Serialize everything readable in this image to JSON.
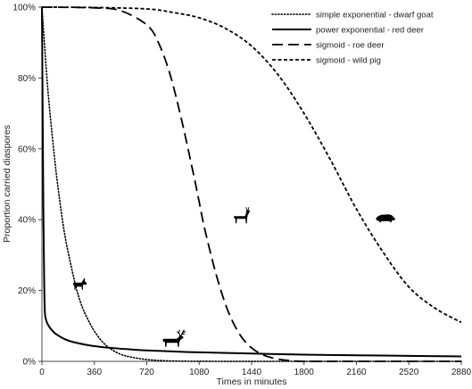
{
  "chart_data": {
    "type": "line",
    "title": "",
    "xlabel": "Times in minutes",
    "ylabel": "Proportion carried diaspores",
    "xlim": [
      0,
      2880
    ],
    "ylim": [
      0,
      100
    ],
    "x_ticks": [
      0,
      360,
      720,
      1080,
      1440,
      1800,
      2160,
      2520,
      2880
    ],
    "y_ticks": [
      0,
      20,
      40,
      60,
      80,
      100
    ],
    "y_tick_labels": [
      "0%",
      "20%",
      "40%",
      "60%",
      "80%",
      "100%"
    ],
    "grid": false,
    "legend_position": "top-right",
    "series": [
      {
        "name": "simple exponential - dwarf goat",
        "style": "dotted",
        "color": "#000000",
        "x": [
          0,
          20,
          40,
          60,
          80,
          100,
          130,
          160,
          200,
          240,
          280,
          320,
          360,
          420,
          480,
          540,
          600,
          720,
          900,
          1200,
          1800,
          2880
        ],
        "y": [
          100,
          88,
          77,
          68,
          60,
          52.5,
          43,
          35,
          27,
          20,
          15,
          11.5,
          8.5,
          5.3,
          3.3,
          2,
          1.3,
          0.5,
          0.1,
          0,
          0,
          0
        ]
      },
      {
        "name": "power exponential - red deer",
        "style": "solid",
        "color": "#000000",
        "x": [
          0,
          5,
          10,
          15,
          20,
          30,
          40,
          50,
          60,
          80,
          100,
          150,
          200,
          300,
          400,
          500,
          600,
          720,
          900,
          1080,
          1440,
          1800,
          2160,
          2520,
          2880
        ],
        "y": [
          100,
          70,
          42,
          24,
          14,
          11.5,
          10.5,
          9.8,
          9.2,
          8.3,
          7.6,
          6.4,
          5.6,
          4.7,
          4.1,
          3.7,
          3.4,
          3.1,
          2.8,
          2.55,
          2.2,
          1.9,
          1.7,
          1.55,
          1.4
        ]
      },
      {
        "name": "sigmoid - roe deer",
        "style": "dashed",
        "color": "#000000",
        "x": [
          0,
          360,
          540,
          720,
          800,
          880,
          960,
          1040,
          1080,
          1120,
          1200,
          1280,
          1360,
          1440,
          1520,
          1600,
          1680,
          1800,
          2160,
          2880
        ],
        "y": [
          100,
          99.8,
          99,
          95,
          90,
          81,
          68,
          53,
          45,
          37,
          24,
          14,
          7.5,
          3.8,
          1.8,
          0.8,
          0.3,
          0,
          0,
          0
        ]
      },
      {
        "name": "sigmoid - wild pig",
        "style": "short-dashed",
        "color": "#000000",
        "x": [
          0,
          360,
          720,
          900,
          1080,
          1260,
          1440,
          1620,
          1800,
          1980,
          2160,
          2340,
          2520,
          2700,
          2880
        ],
        "y": [
          100,
          99.9,
          99.5,
          98.5,
          97,
          94,
          89,
          81,
          70,
          57,
          43,
          31,
          21,
          15,
          11
        ]
      }
    ],
    "annotations": [
      {
        "icon": "goat-icon",
        "x": 260,
        "y": 22
      },
      {
        "icon": "red-deer-icon",
        "x": 900,
        "y": 6
      },
      {
        "icon": "roe-deer-icon",
        "x": 1370,
        "y": 41
      },
      {
        "icon": "wild-pig-icon",
        "x": 2360,
        "y": 40.5
      }
    ]
  }
}
